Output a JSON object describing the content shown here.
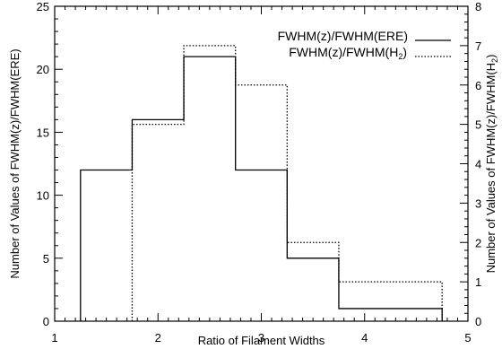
{
  "chart_data": {
    "type": "histogram",
    "xlabel": "Ratio of Filament Widths",
    "ylabel_left": "Number of Values of FWHM(z)/FWHM(ERE)",
    "ylabel_right_main": "Number of Values of FWHM(z)/FWHM(H",
    "ylabel_right_sub": "2",
    "ylabel_right_close": ")",
    "xlim": [
      1,
      5
    ],
    "ylim_left": [
      0,
      25
    ],
    "ylim_right": [
      0,
      8
    ],
    "x_ticks": [
      1,
      2,
      3,
      4,
      5
    ],
    "y_ticks_left": [
      0,
      5,
      10,
      15,
      20,
      25
    ],
    "y_ticks_right": [
      0,
      1,
      2,
      3,
      4,
      5,
      6,
      7,
      8
    ],
    "series": [
      {
        "name": "FWHM(z)/FWHM(ERE)",
        "axis": "left",
        "line_style": "solid",
        "bin_edges": [
          1.25,
          1.75,
          2.25,
          2.75,
          3.25,
          3.75,
          4.75
        ],
        "counts": [
          12,
          16,
          21,
          12,
          5,
          1
        ]
      },
      {
        "name": "FWHM(z)/FWHM(H2)",
        "label_main": "FWHM(z)/FWHM(H",
        "label_sub": "2",
        "label_close": ")",
        "axis": "right",
        "line_style": "dotted",
        "bin_edges": [
          1.75,
          2.25,
          2.75,
          3.25,
          3.75,
          4.75
        ],
        "counts": [
          5,
          7,
          6,
          2,
          1
        ]
      }
    ],
    "legend_position": "top-right"
  }
}
